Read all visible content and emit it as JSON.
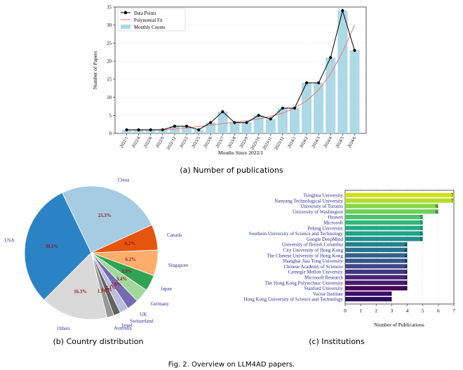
{
  "figure_caption": "Fig. 2.  Overview on LLM4AD papers.",
  "chart_data": [
    {
      "type": "bar",
      "caption": "(a) Number of publications",
      "xlabel": "Months Since 2022/1",
      "ylabel": "Number of Papers",
      "ylim": [
        0,
        35
      ],
      "yticks": [
        0,
        5,
        10,
        15,
        20,
        25,
        30,
        35
      ],
      "grid": true,
      "legend_position": "top-left",
      "legend": [
        "Data Points",
        "Polynomial Fit",
        "Monthly Counts"
      ],
      "categories": [
        "2022/1",
        "2022/4",
        "2022/6",
        "2022/9",
        "2022/12",
        "2023/2",
        "2023/5",
        "2023/6",
        "2023/7",
        "2023/8",
        "2023/9",
        "2023/10",
        "2023/11",
        "2023/12",
        "2024/1",
        "2024/2",
        "2024/3",
        "2024/4",
        "2024/5",
        "2024/6"
      ],
      "values": [
        1,
        1,
        1,
        1,
        2,
        2,
        1,
        3,
        6,
        3,
        3,
        5,
        4,
        7,
        7,
        14,
        14,
        21,
        34,
        23
      ],
      "fit_values": [
        1.0,
        0.9,
        0.9,
        1.0,
        1.2,
        1.5,
        1.9,
        2.3,
        2.7,
        3.1,
        3.5,
        4.0,
        4.7,
        5.6,
        7.0,
        9.0,
        12.0,
        16.5,
        22.5,
        30.0
      ],
      "colors": {
        "bar": "#add8e6",
        "points": "#000000",
        "fit": "#e8827a"
      }
    },
    {
      "type": "pie",
      "caption": "(b) Country distribution",
      "slices": [
        {
          "label": "USA",
          "value": 30.3,
          "pct_label": "30.3%",
          "color": "#2b83c6"
        },
        {
          "label": "China",
          "value": 25.3,
          "pct_label": "25.3%",
          "color": "#a6cce3"
        },
        {
          "label": "Canada",
          "value": 6.2,
          "pct_label": "6.2%",
          "color": "#e6550d"
        },
        {
          "label": "Singapore",
          "value": 6.2,
          "pct_label": "6.2%",
          "color": "#fdae6b"
        },
        {
          "label": "Japan",
          "value": 3.9,
          "pct_label": "3.9%",
          "color": "#31a354"
        },
        {
          "label": "Germany",
          "value": 3.4,
          "pct_label": "3.4%",
          "color": "#a1d99b"
        },
        {
          "label": "UK",
          "value": 2.8,
          "pct_label": "2.8%",
          "color": "#756bb1"
        },
        {
          "label": "Switzerland",
          "value": 2.1,
          "pct_label": "2.1%",
          "color": "#bcbddc"
        },
        {
          "label": "Israel",
          "value": 1.7,
          "pct_label": "1.7%",
          "color": "#636363"
        },
        {
          "label": "Australia",
          "value": 1.7,
          "pct_label": "1.7%",
          "color": "#969696"
        },
        {
          "label": "Others",
          "value": 16.3,
          "pct_label": "16.3%",
          "color": "#d9d9d9"
        }
      ]
    },
    {
      "type": "bar",
      "orientation": "horizontal",
      "caption": "(c) Institutions",
      "xlabel": "Number of Publications",
      "xlim": [
        0,
        7
      ],
      "xticks": [
        0,
        1,
        2,
        3,
        4,
        5,
        6,
        7
      ],
      "grid": true,
      "categories": [
        "Tsinghua University",
        "Nanyang Technological University",
        "University of Toronto",
        "University of Washington",
        "Huawei",
        "Microsoft",
        "Peking University",
        "Southern University of Science and Technology",
        "Google DeepMind",
        "University of British Columbia",
        "City University of Hong Kong",
        "The Chinese University of Hong Kong",
        "Shanghai Jiao Tong University",
        "Chinese Academy of Sciences",
        "Carnegie Mellon University",
        "Microsoft Research",
        "The Hong Kong Polytechnic University",
        "Stanford University",
        "Vector Institute",
        "Hong Kong University of Science and Technology"
      ],
      "values": [
        7,
        7,
        6,
        6,
        5,
        5,
        5,
        5,
        5,
        4,
        4,
        4,
        4,
        4,
        4,
        4,
        4,
        4,
        3,
        3
      ],
      "value_labels": [
        "7",
        "7",
        "6",
        "6",
        "5",
        "5",
        "5",
        "5",
        "5",
        "4",
        "4",
        "4",
        "4",
        "4",
        "4",
        "4",
        "4",
        "4",
        "3",
        "3"
      ],
      "colors": [
        "#d0e11c",
        "#b5de2b",
        "#89d548",
        "#6ece58",
        "#4ac16d",
        "#35b779",
        "#25ac82",
        "#1fa188",
        "#21918c",
        "#26828e",
        "#2c728e",
        "#33638d",
        "#39568c",
        "#3f4788",
        "#453781",
        "#482878",
        "#481a6c",
        "#440154",
        "#3b0f70",
        "#2d0f5e"
      ]
    }
  ]
}
